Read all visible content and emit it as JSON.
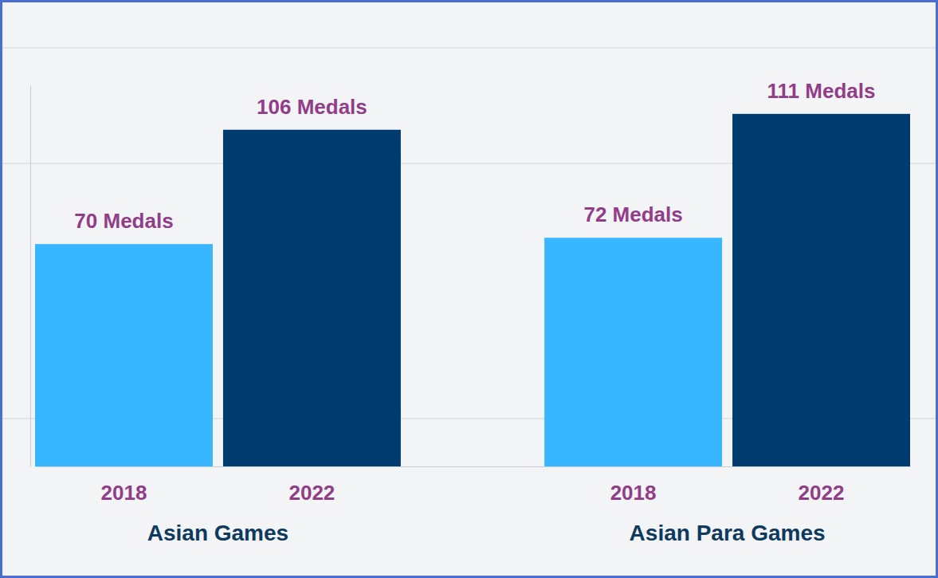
{
  "chart_data": {
    "type": "bar",
    "categories": [
      "Asian Games",
      "Asian Para Games"
    ],
    "series": [
      {
        "name": "2018",
        "color": "#38b6ff",
        "values": [
          70,
          72
        ],
        "value_labels": [
          "70 Medals",
          "72 Medals"
        ]
      },
      {
        "name": "2022",
        "color": "#003b6f",
        "values": [
          106,
          111
        ],
        "value_labels": [
          "106 Medals",
          "111 Medals"
        ]
      }
    ],
    "ylim": [
      0,
      120
    ],
    "data_labels": true,
    "tick_labels": "x",
    "grid": false
  }
}
